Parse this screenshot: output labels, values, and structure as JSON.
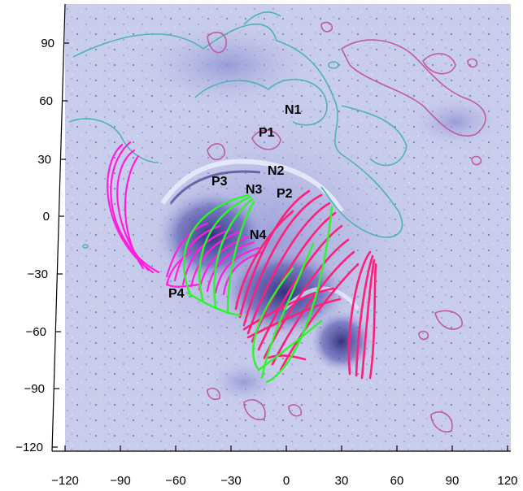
{
  "axes": {
    "x_ticks": [
      "−120",
      "−90",
      "−60",
      "−30",
      "0",
      "30",
      "60",
      "90",
      "120"
    ],
    "y_ticks": [
      "90",
      "60",
      "30",
      "0",
      "−30",
      "−60",
      "−90",
      "−120"
    ]
  },
  "regions": [
    {
      "id": "n1",
      "label": "N1"
    },
    {
      "id": "p1",
      "label": "P1"
    },
    {
      "id": "n2",
      "label": "N2"
    },
    {
      "id": "p3",
      "label": "P3"
    },
    {
      "id": "n3",
      "label": "N3"
    },
    {
      "id": "p2",
      "label": "P2"
    },
    {
      "id": "n4",
      "label": "N4"
    },
    {
      "id": "p4",
      "label": "P4"
    }
  ],
  "colors": {
    "background": "#c8cdec",
    "contour_positive": "#c05aa4",
    "contour_negative": "#4fb3b4",
    "loops_magenta": "#ff1ee0",
    "loops_pink": "#ff1f78",
    "loops_green": "#2df52d"
  }
}
